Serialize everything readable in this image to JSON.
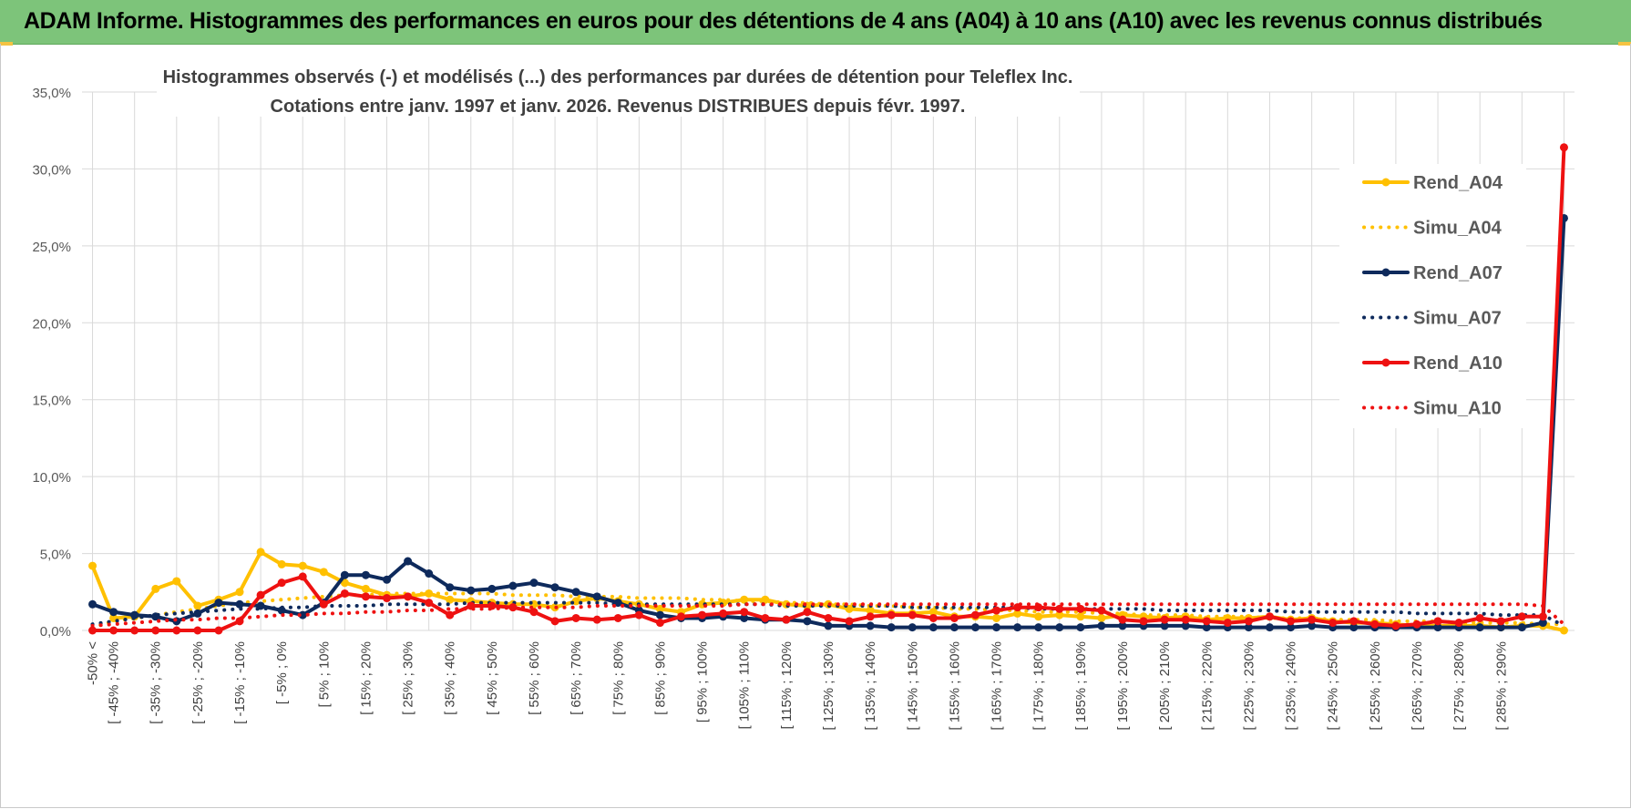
{
  "banner": {
    "title": "ADAM Informe. Histogrammes des performances en euros pour des détentions de 4 ans (A04) à 10 ans (A10) avec les revenus connus distribués"
  },
  "chart_data": {
    "type": "line",
    "title": [
      "Histogrammes observés (-) et modélisés (...) des performances par durées de détention pour Teleflex Inc.",
      "Cotations entre janv. 1997 et janv. 2026. Revenus DISTRIBUES depuis févr. 1997."
    ],
    "xlabel": "",
    "ylabel": "",
    "ylim": [
      0,
      35
    ],
    "yticks": [
      "0,0%",
      "5,0%",
      "10,0%",
      "15,0%",
      "20,0%",
      "25,0%",
      "30,0%",
      "35,0%"
    ],
    "grid": true,
    "legend_position": "right",
    "x_tick_labels": [
      "-50% <",
      "[ -45% ; -40%",
      "[ -35% ; -30%",
      "[ -25% ; -20%",
      "[ -15% ; -10%",
      "[ -5% ; 0%",
      "[ 5% ; 10%",
      "[ 15% ; 20%",
      "[ 25% ; 30%",
      "[ 35% ; 40%",
      "[ 45% ; 50%",
      "[ 55% ; 60%",
      "[ 65% ; 70%",
      "[ 75% ; 80%",
      "[ 85% ; 90%",
      "[ 95% ; 100%",
      "[ 105% ; 110%",
      "[ 115% ; 120%",
      "[ 125% ; 130%",
      "[ 135% ; 140%",
      "[ 145% ; 150%",
      "[ 155% ; 160%",
      "[ 165% ; 170%",
      "[ 175% ; 180%",
      "[ 185% ; 190%",
      "[ 195% ; 200%",
      "[ 205% ; 210%",
      "[ 215% ; 220%",
      "[ 225% ; 230%",
      "[ 235% ; 240%",
      "[ 245% ; 250%",
      "[ 255% ; 260%",
      "[ 265% ; 270%",
      "[ 275% ; 280%",
      "[ 285% ; 290%"
    ],
    "n_points": 71,
    "series": [
      {
        "name": "Rend_A04",
        "color": "#FFC000",
        "style": "solid",
        "values": [
          4.2,
          0.8,
          0.9,
          2.7,
          3.2,
          1.6,
          2.0,
          2.5,
          5.1,
          4.3,
          4.2,
          3.8,
          3.1,
          2.7,
          2.3,
          2.2,
          2.4,
          2.0,
          1.9,
          1.8,
          1.7,
          1.7,
          1.5,
          1.9,
          2.1,
          1.9,
          1.7,
          1.4,
          1.2,
          1.7,
          1.8,
          2.0,
          2.0,
          1.7,
          1.6,
          1.7,
          1.4,
          1.3,
          1.1,
          1.1,
          1.2,
          0.9,
          0.9,
          0.8,
          1.1,
          0.9,
          1.0,
          0.9,
          0.8,
          1.0,
          0.9,
          0.8,
          0.9,
          0.7,
          0.8,
          0.8,
          0.9,
          0.7,
          0.8,
          0.6,
          0.5,
          0.5,
          0.4,
          0.3,
          0.3,
          0.3,
          0.3,
          0.2,
          0.3,
          0.3,
          0.0
        ]
      },
      {
        "name": "Simu_A04",
        "color": "#FFC000",
        "style": "dotted",
        "values": [
          0.2,
          0.6,
          0.8,
          1.0,
          1.2,
          1.4,
          1.6,
          1.8,
          1.9,
          2.0,
          2.1,
          2.2,
          2.3,
          2.3,
          2.4,
          2.4,
          2.4,
          2.4,
          2.4,
          2.4,
          2.3,
          2.3,
          2.3,
          2.2,
          2.2,
          2.2,
          2.1,
          2.1,
          2.1,
          2.0,
          2.0,
          1.9,
          1.9,
          1.8,
          1.8,
          1.7,
          1.7,
          1.6,
          1.6,
          1.5,
          1.5,
          1.4,
          1.4,
          1.3,
          1.3,
          1.2,
          1.2,
          1.2,
          1.1,
          1.1,
          1.0,
          1.0,
          1.0,
          0.9,
          0.9,
          0.9,
          0.8,
          0.8,
          0.8,
          0.7,
          0.7,
          0.7,
          0.6,
          0.6,
          0.6,
          0.5,
          0.5,
          0.5,
          0.5,
          0.4,
          0.4
        ]
      },
      {
        "name": "Rend_A07",
        "color": "#0E2A5C",
        "style": "solid",
        "values": [
          1.7,
          1.2,
          1.0,
          0.9,
          0.6,
          1.1,
          1.8,
          1.7,
          1.6,
          1.3,
          1.0,
          1.8,
          3.6,
          3.6,
          3.3,
          4.5,
          3.7,
          2.8,
          2.6,
          2.7,
          2.9,
          3.1,
          2.8,
          2.5,
          2.2,
          1.8,
          1.3,
          1.0,
          0.8,
          0.8,
          0.9,
          0.8,
          0.7,
          0.7,
          0.6,
          0.3,
          0.3,
          0.3,
          0.2,
          0.2,
          0.2,
          0.2,
          0.2,
          0.2,
          0.2,
          0.2,
          0.2,
          0.2,
          0.3,
          0.3,
          0.3,
          0.3,
          0.3,
          0.2,
          0.2,
          0.2,
          0.2,
          0.2,
          0.3,
          0.2,
          0.2,
          0.2,
          0.2,
          0.2,
          0.2,
          0.2,
          0.2,
          0.2,
          0.2,
          0.5,
          26.8
        ]
      },
      {
        "name": "Simu_A07",
        "color": "#0E2A5C",
        "style": "dotted",
        "values": [
          0.4,
          0.6,
          0.8,
          1.0,
          1.1,
          1.2,
          1.3,
          1.4,
          1.4,
          1.5,
          1.5,
          1.6,
          1.6,
          1.6,
          1.7,
          1.7,
          1.7,
          1.7,
          1.8,
          1.8,
          1.8,
          1.8,
          1.8,
          1.8,
          1.8,
          1.7,
          1.7,
          1.7,
          1.7,
          1.7,
          1.7,
          1.7,
          1.7,
          1.6,
          1.6,
          1.6,
          1.6,
          1.6,
          1.6,
          1.5,
          1.5,
          1.5,
          1.5,
          1.5,
          1.5,
          1.4,
          1.4,
          1.4,
          1.4,
          1.4,
          1.4,
          1.3,
          1.3,
          1.3,
          1.3,
          1.3,
          1.3,
          1.2,
          1.2,
          1.2,
          1.2,
          1.2,
          1.2,
          1.1,
          1.1,
          1.1,
          1.1,
          1.0,
          1.0,
          1.0,
          0.3
        ]
      },
      {
        "name": "Rend_A10",
        "color": "#EE1111",
        "style": "solid",
        "values": [
          0.0,
          0.0,
          0.0,
          0.0,
          0.0,
          0.0,
          0.0,
          0.6,
          2.3,
          3.1,
          3.5,
          1.7,
          2.4,
          2.2,
          2.1,
          2.2,
          1.8,
          1.0,
          1.6,
          1.6,
          1.5,
          1.2,
          0.6,
          0.8,
          0.7,
          0.8,
          1.0,
          0.5,
          0.9,
          1.0,
          1.1,
          1.2,
          0.8,
          0.7,
          1.2,
          0.8,
          0.6,
          0.9,
          1.0,
          1.0,
          0.8,
          0.8,
          1.0,
          1.3,
          1.5,
          1.5,
          1.4,
          1.4,
          1.3,
          0.7,
          0.6,
          0.7,
          0.7,
          0.6,
          0.5,
          0.6,
          0.9,
          0.6,
          0.7,
          0.5,
          0.6,
          0.4,
          0.3,
          0.4,
          0.6,
          0.5,
          0.8,
          0.6,
          0.9,
          0.9,
          31.4
        ]
      },
      {
        "name": "Simu_A10",
        "color": "#EE1111",
        "style": "dotted",
        "values": [
          0.3,
          0.4,
          0.5,
          0.6,
          0.7,
          0.7,
          0.8,
          0.8,
          0.9,
          1.0,
          1.0,
          1.1,
          1.1,
          1.2,
          1.2,
          1.3,
          1.3,
          1.4,
          1.4,
          1.4,
          1.5,
          1.5,
          1.5,
          1.5,
          1.6,
          1.6,
          1.6,
          1.6,
          1.6,
          1.6,
          1.6,
          1.7,
          1.7,
          1.7,
          1.7,
          1.7,
          1.7,
          1.7,
          1.7,
          1.7,
          1.7,
          1.7,
          1.7,
          1.7,
          1.7,
          1.7,
          1.7,
          1.7,
          1.7,
          1.7,
          1.7,
          1.7,
          1.7,
          1.7,
          1.7,
          1.7,
          1.7,
          1.7,
          1.7,
          1.7,
          1.7,
          1.7,
          1.7,
          1.7,
          1.7,
          1.7,
          1.7,
          1.7,
          1.7,
          1.6,
          0.4
        ]
      }
    ]
  }
}
